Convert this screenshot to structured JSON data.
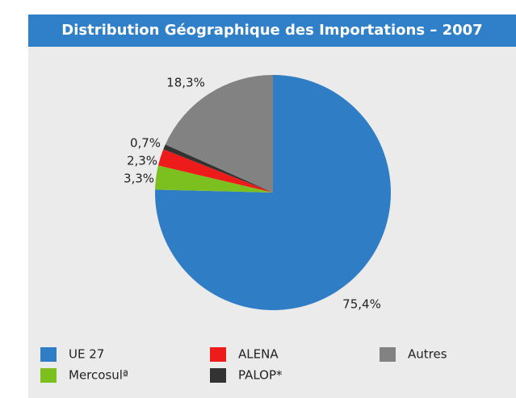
{
  "chart_data": {
    "type": "pie",
    "title": "Distribution Géographique des Importations – 2007",
    "categories": [
      "UE 27",
      "Mercosulª",
      "ALENA",
      "PALOP*",
      "Autres"
    ],
    "values": [
      75.4,
      3.3,
      2.3,
      0.7,
      18.3
    ],
    "value_labels": [
      "75,4%",
      "3,3%",
      "2,3%",
      "0,7%",
      "18,3%"
    ],
    "colors": [
      "#2f7dc4",
      "#7cc01f",
      "#ee1b1b",
      "#333333",
      "#828282"
    ]
  }
}
